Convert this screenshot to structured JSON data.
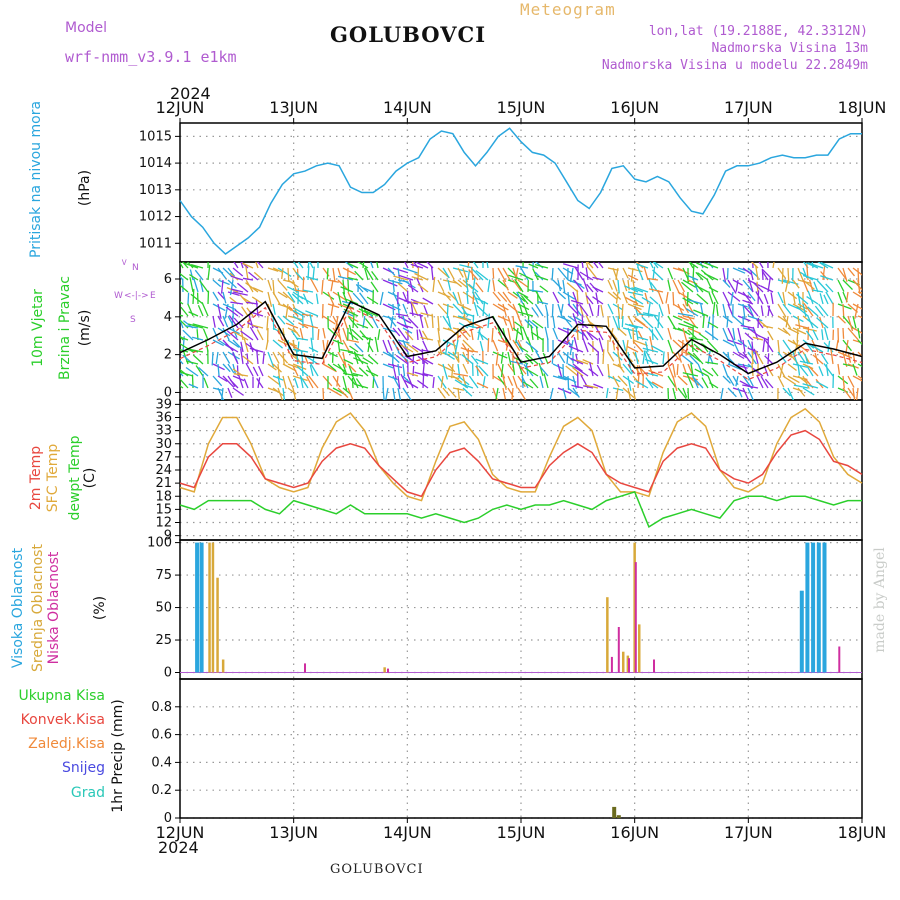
{
  "header": {
    "model_label": "Model",
    "model_name": "wrf-nmm_v3.9.1  e1km",
    "station": "GOLUBOVCI",
    "product": "Meteogram",
    "lonlat": "lon,lat (19.2188E, 42.3312N)",
    "altitude": "Nadmorska Visina 13m",
    "model_altitude": "Nadmorska Visina u modelu 22.2849m",
    "year": "2024",
    "footer_station": "GOLUBOVCI",
    "watermark": "made by Angel"
  },
  "compass": {
    "n": "N",
    "w": "W",
    "e": "E",
    "s": "S"
  },
  "colors": {
    "pressure": "#2aa6de",
    "temp2m": "#e8473f",
    "sfc": "#e0a93a",
    "dew": "#2bcf2b",
    "high_cloud": "#2aa6de",
    "mid_cloud": "#d8a93a",
    "low_cloud": "#cf2ea0",
    "total_precip": "#2bcf2b",
    "conv_precip": "#e8473f",
    "frozen": "#f08a3a",
    "snow": "#4a4ae0",
    "graupel": "#2ac8b8"
  },
  "chart_data": [
    {
      "type": "line",
      "title": "",
      "ylabel_left": "Pritisak na nivou mora",
      "ylabel_unit": "(hPa)",
      "x": [
        0,
        0.1,
        0.2,
        0.3,
        0.4,
        0.5,
        0.6,
        0.7,
        0.8,
        0.9,
        1.0,
        1.1,
        1.2,
        1.3,
        1.4,
        1.5,
        1.6,
        1.7,
        1.8,
        1.9,
        2.0,
        2.1,
        2.2,
        2.3,
        2.4,
        2.5,
        2.6,
        2.7,
        2.8,
        2.9,
        3.0,
        3.1,
        3.2,
        3.3,
        3.4,
        3.5,
        3.6,
        3.7,
        3.8,
        3.9,
        4.0,
        4.1,
        4.2,
        4.3,
        4.4,
        4.5,
        4.6,
        4.7,
        4.8,
        4.9,
        5.0,
        5.1,
        5.2,
        5.3,
        5.4,
        5.5,
        5.6,
        5.7,
        5.8,
        5.9,
        6.0
      ],
      "series": [
        {
          "values": [
            1012.6,
            1012.0,
            1011.6,
            1011.0,
            1010.6,
            1010.9,
            1011.2,
            1011.6,
            1012.5,
            1013.2,
            1013.6,
            1013.7,
            1013.9,
            1014.0,
            1013.9,
            1013.1,
            1012.9,
            1012.9,
            1013.2,
            1013.7,
            1014.0,
            1014.2,
            1014.9,
            1015.2,
            1015.1,
            1014.4,
            1013.9,
            1014.4,
            1015.0,
            1015.3,
            1014.8,
            1014.4,
            1014.3,
            1014.0,
            1013.3,
            1012.6,
            1012.3,
            1012.9,
            1013.8,
            1013.9,
            1013.4,
            1013.3,
            1013.5,
            1013.3,
            1012.7,
            1012.2,
            1012.1,
            1012.8,
            1013.7,
            1013.9,
            1013.9,
            1014.0,
            1014.2,
            1014.3,
            1014.2,
            1014.2,
            1014.3,
            1014.3,
            1014.9,
            1015.1,
            1015.1
          ]
        }
      ],
      "ylim": [
        1010.3,
        1015.5
      ],
      "yticks": [
        1011,
        1012,
        1013,
        1014,
        1015
      ]
    },
    {
      "type": "line",
      "title": "",
      "ylabel_left": "10m Vjetar",
      "ylabel_left2": "Brzina i Pravac",
      "ylabel_unit": "(m/s)",
      "x": [
        0,
        0.25,
        0.5,
        0.75,
        1.0,
        1.25,
        1.5,
        1.75,
        2.0,
        2.25,
        2.5,
        2.75,
        3.0,
        3.25,
        3.5,
        3.75,
        4.0,
        4.25,
        4.5,
        4.75,
        5.0,
        5.25,
        5.5,
        5.75,
        6.0
      ],
      "series": [
        {
          "values": [
            2.1,
            2.8,
            3.6,
            4.8,
            2.0,
            1.8,
            4.8,
            4.1,
            1.9,
            2.2,
            3.5,
            4.0,
            1.6,
            1.9,
            3.6,
            3.5,
            1.3,
            1.4,
            2.8,
            2.0,
            1.0,
            1.6,
            2.6,
            2.3,
            1.9
          ]
        }
      ],
      "ylim": [
        -0.4,
        6.9
      ],
      "yticks": [
        0,
        2,
        4,
        6
      ]
    },
    {
      "type": "line",
      "title": "",
      "ylabel_left": "2m Temp",
      "ylabel_left2": "SFC Temp",
      "ylabel_left3": "dewpt Temp",
      "ylabel_unit": "(C)",
      "x": [
        0,
        0.125,
        0.25,
        0.375,
        0.5,
        0.625,
        0.75,
        0.875,
        1.0,
        1.125,
        1.25,
        1.375,
        1.5,
        1.625,
        1.75,
        1.875,
        2.0,
        2.125,
        2.25,
        2.375,
        2.5,
        2.625,
        2.75,
        2.875,
        3.0,
        3.125,
        3.25,
        3.375,
        3.5,
        3.625,
        3.75,
        3.875,
        4.0,
        4.125,
        4.25,
        4.375,
        4.5,
        4.625,
        4.75,
        4.875,
        5.0,
        5.125,
        5.25,
        5.375,
        5.5,
        5.625,
        5.75,
        5.875,
        6.0
      ],
      "series": [
        {
          "name": "2m Temp",
          "values": [
            21,
            20,
            27,
            30,
            30,
            27,
            22,
            21,
            20,
            21,
            26,
            29,
            30,
            29,
            25,
            22,
            19,
            18,
            24,
            28,
            29,
            26,
            22,
            21,
            20,
            20,
            25,
            28,
            30,
            28,
            23,
            21,
            20,
            19,
            26,
            29,
            30,
            29,
            24,
            22,
            21,
            23,
            28,
            32,
            33,
            31,
            26,
            25,
            23
          ]
        },
        {
          "name": "SFC Temp",
          "values": [
            20,
            19,
            30,
            36,
            36,
            30,
            22,
            20,
            19,
            20,
            29,
            35,
            37,
            33,
            25,
            21,
            18,
            17,
            26,
            34,
            35,
            31,
            23,
            20,
            19,
            19,
            27,
            34,
            36,
            33,
            23,
            19,
            19,
            18,
            28,
            35,
            37,
            34,
            24,
            20,
            19,
            21,
            30,
            36,
            38,
            35,
            27,
            23,
            21
          ]
        },
        {
          "name": "dewpt Temp",
          "values": [
            16,
            15,
            17,
            17,
            17,
            17,
            15,
            14,
            17,
            16,
            15,
            14,
            16,
            14,
            14,
            14,
            14,
            13,
            14,
            13,
            12,
            13,
            15,
            16,
            15,
            16,
            16,
            17,
            16,
            15,
            17,
            18,
            19,
            11,
            13,
            14,
            15,
            14,
            13,
            17,
            18,
            18,
            17,
            18,
            18,
            17,
            16,
            17,
            17
          ]
        }
      ],
      "ylim": [
        8,
        40
      ],
      "yticks": [
        9,
        12,
        15,
        18,
        21,
        24,
        27,
        30,
        33,
        36,
        39
      ]
    },
    {
      "type": "bar",
      "title": "",
      "ylabel_left": "Visoka Oblacnost",
      "ylabel_left2": "Srednja Oblacnost",
      "ylabel_left3": "Niska Oblacnost",
      "ylabel_unit": "(%)",
      "series": [
        {
          "name": "Visoka Oblacnost",
          "x": [
            0.15,
            0.19,
            5.47,
            5.52,
            5.57,
            5.62,
            5.67
          ],
          "values": [
            100,
            100,
            63,
            100,
            100,
            100,
            100
          ]
        },
        {
          "name": "Srednja Oblacnost",
          "x": [
            0.26,
            0.29,
            0.33,
            0.38,
            1.8,
            3.76,
            3.9,
            3.94,
            4.0,
            4.04
          ],
          "values": [
            100,
            100,
            73,
            10,
            4,
            58,
            16,
            13,
            100,
            37
          ]
        },
        {
          "name": "Niska Oblacnost",
          "x": [
            1.1,
            1.83,
            3.8,
            3.86,
            3.95,
            4.01,
            4.17,
            5.8
          ],
          "values": [
            7,
            3,
            12,
            35,
            11,
            85,
            10,
            20
          ]
        }
      ],
      "ylim": [
        -5,
        102
      ],
      "yticks": [
        0,
        25,
        50,
        75,
        100
      ]
    },
    {
      "type": "bar",
      "title": "",
      "ylabel_left": "Ukupna Kisa",
      "ylabel_left2": "Konvek.Kisa",
      "ylabel_left3": "Zaledj.Kisa",
      "ylabel_left4": "Snijeg",
      "ylabel_left5": "Grad",
      "ylabel_unit": "1hr Precip (mm)",
      "series": [
        {
          "name": "Ukupna Kisa",
          "x": [
            3.82,
            3.86
          ],
          "values": [
            0.08,
            0.02
          ]
        }
      ],
      "ylim": [
        0,
        1.0
      ],
      "yticks": [
        0,
        0.2,
        0.4,
        0.6,
        0.8
      ],
      "xticklabels": [
        "12JUN",
        "13JUN",
        "14JUN",
        "15JUN",
        "16JUN",
        "17JUN",
        "18JUN"
      ]
    }
  ]
}
